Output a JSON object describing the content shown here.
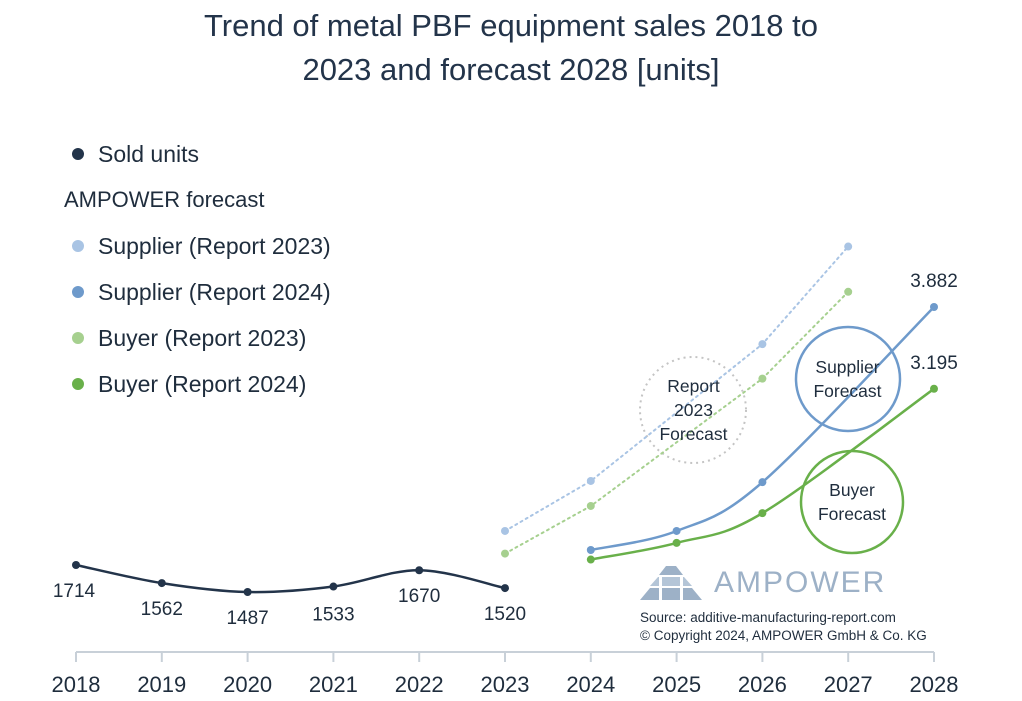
{
  "title_lines": [
    "Trend of metal PBF equipment sales 2018 to",
    "2023 and forecast 2028 [units]"
  ],
  "legend": {
    "sold": "Sold units",
    "heading": "AMPOWER forecast",
    "supplier_2023": "Supplier (Report 2023)",
    "supplier_2024": "Supplier (Report 2024)",
    "buyer_2023": "Buyer (Report 2023)",
    "buyer_2024": "Buyer (Report 2024)"
  },
  "circles": {
    "report_2023": [
      "Report",
      "2023",
      "Forecast"
    ],
    "supplier": [
      "Supplier",
      "Forecast"
    ],
    "buyer": [
      "Buyer",
      "Forecast"
    ]
  },
  "logo": "AMPOWER",
  "source": "Source: additive-manufacturing-report.com",
  "copyright": "© Copyright 2024, AMPOWER GmbH & Co. KG",
  "colors": {
    "sold": "#23344a",
    "supplier_2023": "#a9c4e4",
    "supplier_2024": "#6e9acb",
    "buyer_2023": "#a6d08f",
    "buyer_2024": "#69b04a",
    "axis": "#c8d0d8",
    "dotted_circle": "#c4c4c4"
  },
  "chart_data": {
    "type": "line",
    "title": "Trend of metal PBF equipment sales 2018 to 2023 and forecast 2028 [units]",
    "xlabel": "",
    "ylabel": "",
    "categories": [
      "2018",
      "2019",
      "2020",
      "2021",
      "2022",
      "2023",
      "2024",
      "2025",
      "2026",
      "2027",
      "2028"
    ],
    "ylim": [
      1200,
      4600
    ],
    "series": [
      {
        "key": "sold",
        "name": "Sold units",
        "style": "solid",
        "x": [
          "2018",
          "2019",
          "2020",
          "2021",
          "2022",
          "2023"
        ],
        "values": [
          1714,
          1562,
          1487,
          1533,
          1670,
          1520
        ],
        "labels": [
          "1714",
          "1562",
          "1487",
          "1533",
          "1670",
          "1520"
        ]
      },
      {
        "key": "supplier_2023",
        "name": "Supplier (Report 2023)",
        "style": "dotted",
        "x": [
          "2023",
          "2024",
          "2026",
          "2027"
        ],
        "values": [
          2000,
          2420,
          3570,
          4390
        ]
      },
      {
        "key": "buyer_2023",
        "name": "Buyer (Report 2023)",
        "style": "dotted",
        "x": [
          "2023",
          "2024",
          "2026",
          "2027"
        ],
        "values": [
          1810,
          2210,
          3280,
          4010
        ]
      },
      {
        "key": "supplier_2024",
        "name": "Supplier (Report 2024)",
        "style": "solid",
        "x": [
          "2024",
          "2025",
          "2026",
          "2028"
        ],
        "values": [
          1840,
          2000,
          2410,
          3882
        ],
        "end_label": "3.882"
      },
      {
        "key": "buyer_2024",
        "name": "Buyer (Report 2024)",
        "style": "solid",
        "x": [
          "2024",
          "2025",
          "2026",
          "2028"
        ],
        "values": [
          1760,
          1900,
          2150,
          3195
        ],
        "end_label": "3.195"
      }
    ]
  }
}
